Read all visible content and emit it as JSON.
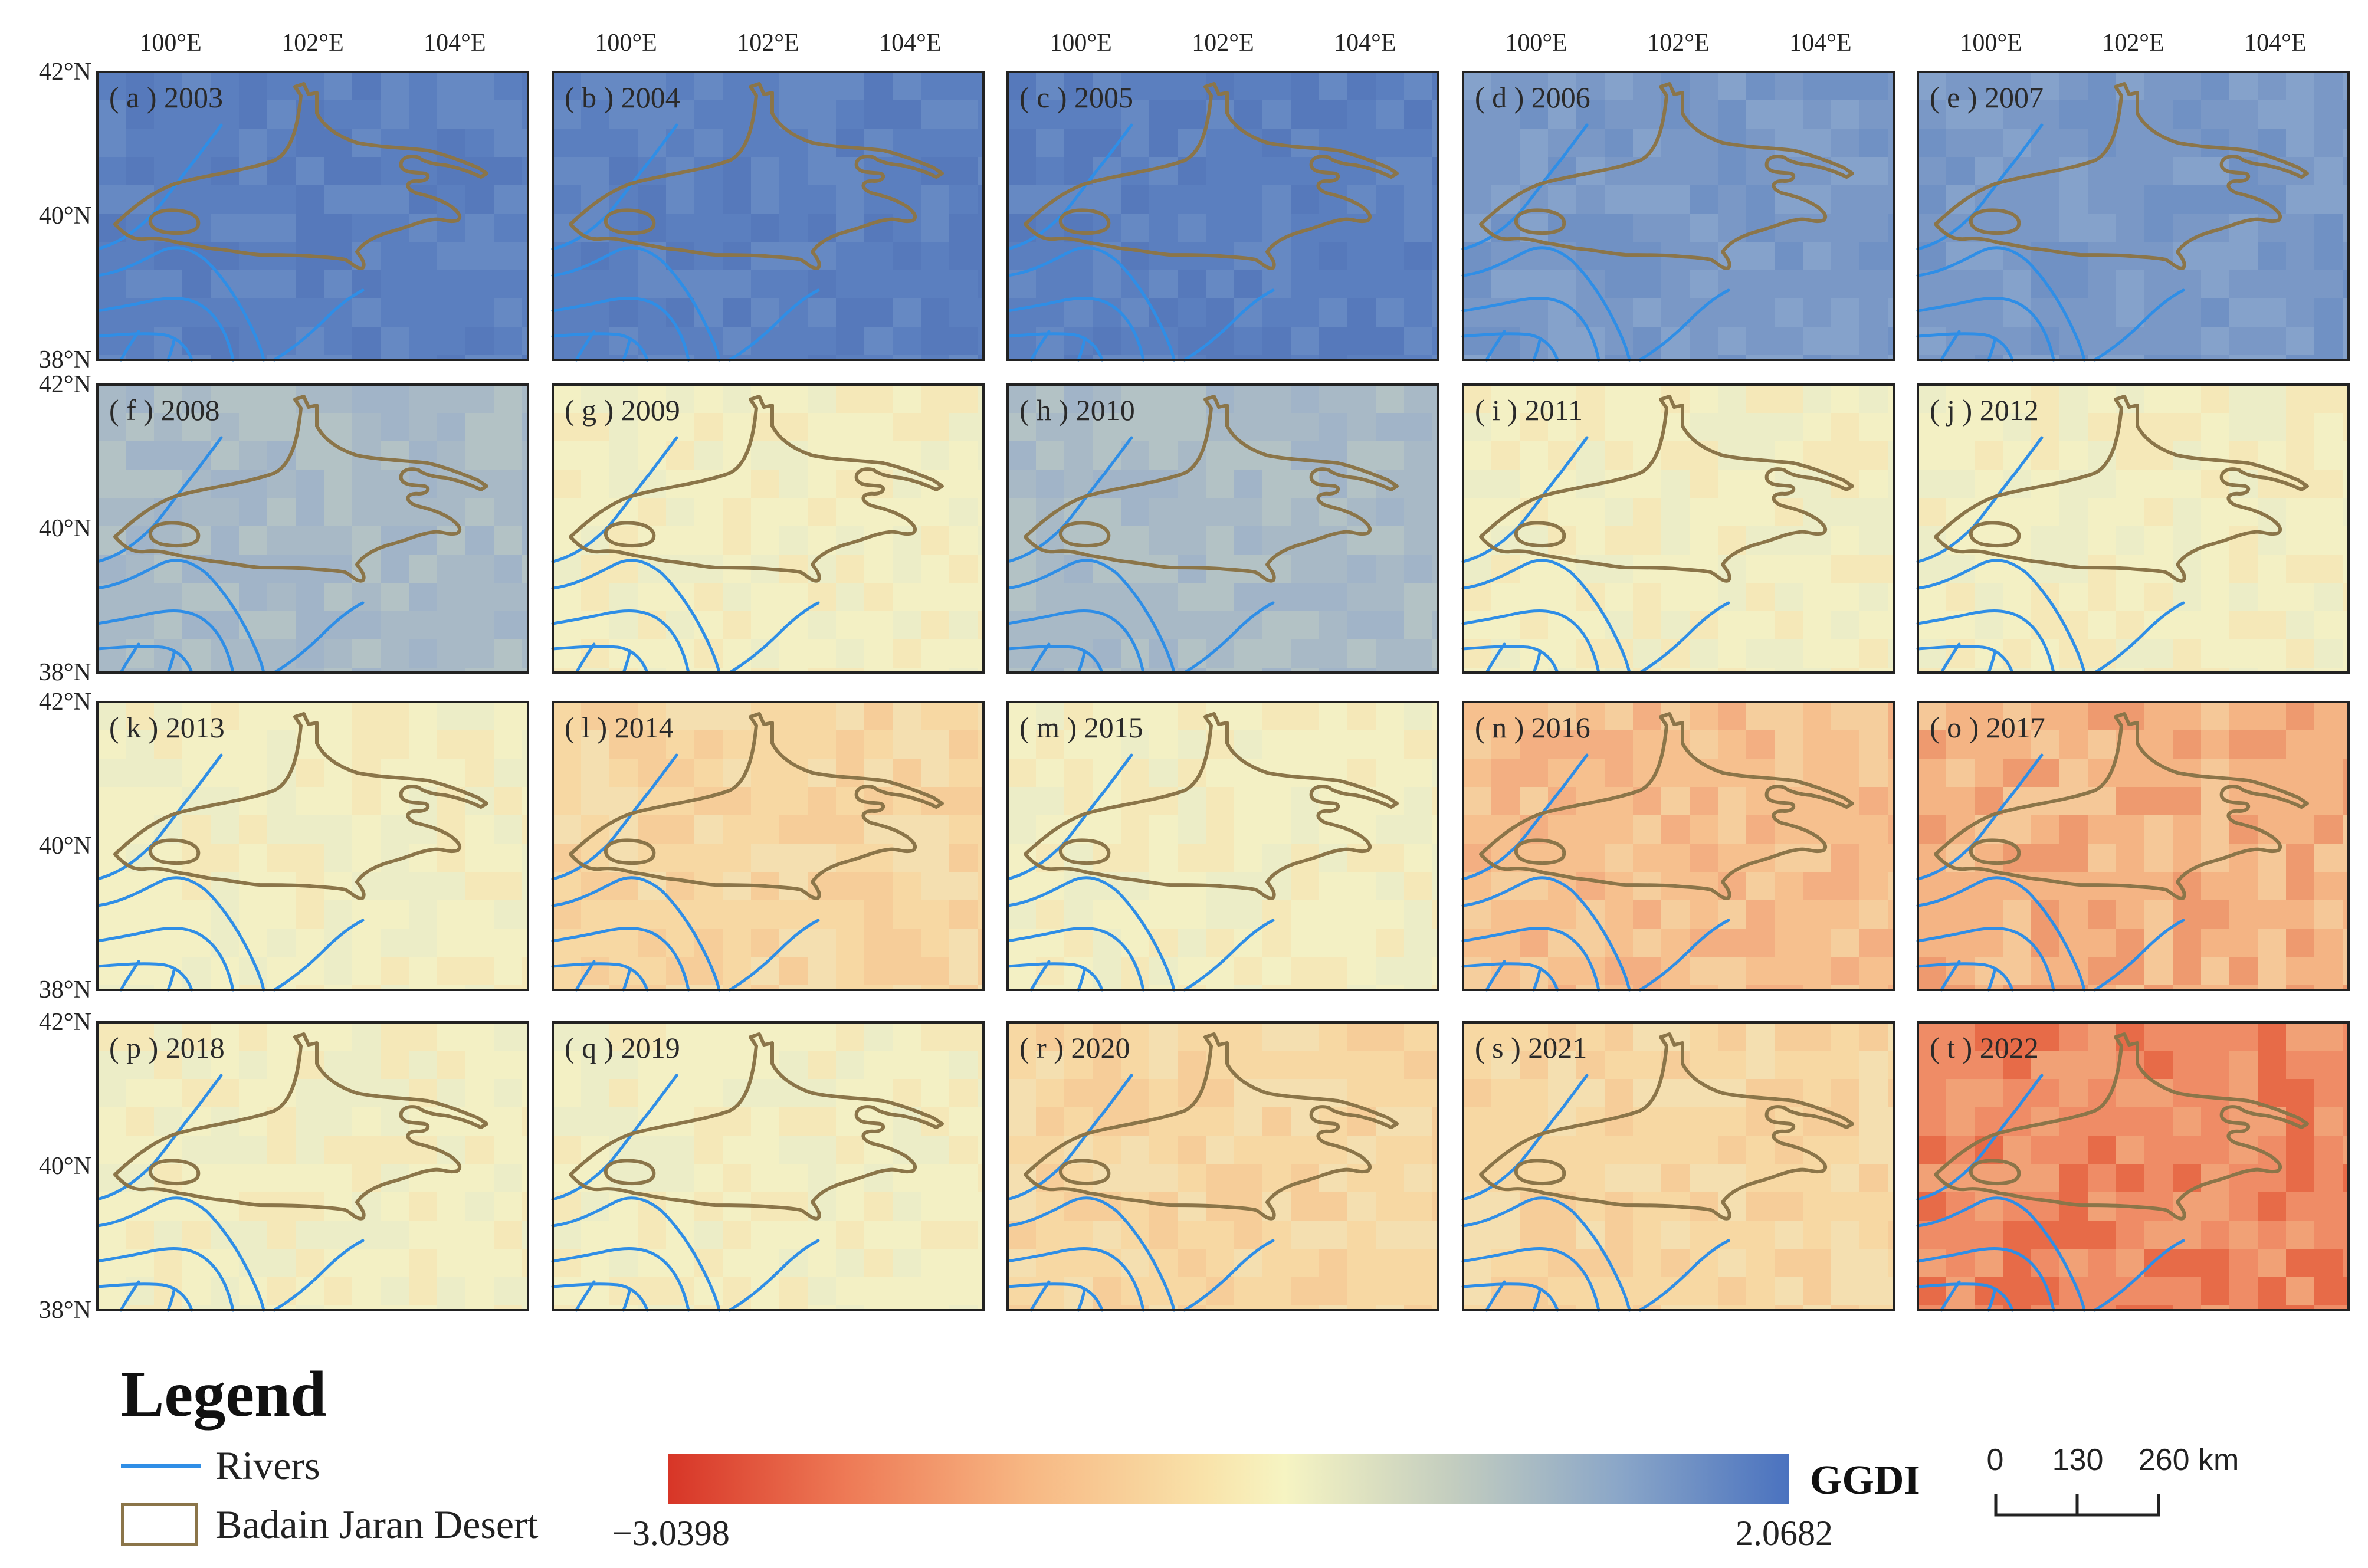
{
  "panels": [
    {
      "label": "( a ) 2003",
      "year": 2003,
      "tone": "blue"
    },
    {
      "label": "( b ) 2004",
      "year": 2004,
      "tone": "blue"
    },
    {
      "label": "( c ) 2005",
      "year": 2005,
      "tone": "blue"
    },
    {
      "label": "( d ) 2006",
      "year": 2006,
      "tone": "blue-light"
    },
    {
      "label": "( e ) 2007",
      "year": 2007,
      "tone": "blue-light"
    },
    {
      "label": "( f ) 2008",
      "year": 2008,
      "tone": "grey-blue"
    },
    {
      "label": "( g ) 2009",
      "year": 2009,
      "tone": "cream"
    },
    {
      "label": "( h ) 2010",
      "year": 2010,
      "tone": "grey-blue"
    },
    {
      "label": "( i ) 2011",
      "year": 2011,
      "tone": "cream"
    },
    {
      "label": "( j ) 2012",
      "year": 2012,
      "tone": "cream"
    },
    {
      "label": "( k ) 2013",
      "year": 2013,
      "tone": "cream"
    },
    {
      "label": "( l ) 2014",
      "year": 2014,
      "tone": "light-orange"
    },
    {
      "label": "( m ) 2015",
      "year": 2015,
      "tone": "cream"
    },
    {
      "label": "( n ) 2016",
      "year": 2016,
      "tone": "orange"
    },
    {
      "label": "( o ) 2017",
      "year": 2017,
      "tone": "orange-red"
    },
    {
      "label": "( p ) 2018",
      "year": 2018,
      "tone": "cream"
    },
    {
      "label": "( q ) 2019",
      "year": 2019,
      "tone": "cream"
    },
    {
      "label": "( r ) 2020",
      "year": 2020,
      "tone": "light-orange"
    },
    {
      "label": "( s ) 2021",
      "year": 2021,
      "tone": "light-orange"
    },
    {
      "label": "( t ) 2022",
      "year": 2022,
      "tone": "red"
    }
  ],
  "axes": {
    "lon_labels": [
      "100°E",
      "102°E",
      "104°E"
    ],
    "lat_labels": [
      "42°N",
      "40°N",
      "38°N"
    ]
  },
  "legend": {
    "title": "Legend",
    "rivers_label": "Rivers",
    "desert_label": "Badain Jaran Desert",
    "colorbar_title": "GGDI",
    "colorbar_min": "−3.0398",
    "colorbar_max": "2.0682",
    "scale": {
      "zero": "0",
      "mid": "130",
      "end": "260 km"
    }
  },
  "colors": {
    "rivers": "#2f8ee6",
    "desert_outline": "#8b7549",
    "low": "#d73527",
    "mid": "#f6f4c2",
    "high": "#4a72bf"
  }
}
